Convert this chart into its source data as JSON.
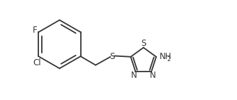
{
  "bg_color": "#ffffff",
  "line_color": "#333333",
  "text_color": "#333333",
  "line_width": 1.3,
  "font_size": 8.5,
  "figsize": [
    3.4,
    1.44
  ],
  "dpi": 100,
  "xlim": [
    0.0,
    10.2
  ],
  "ylim": [
    0.0,
    4.3
  ],
  "bx": 2.55,
  "by": 2.4,
  "hex_r": 1.05
}
